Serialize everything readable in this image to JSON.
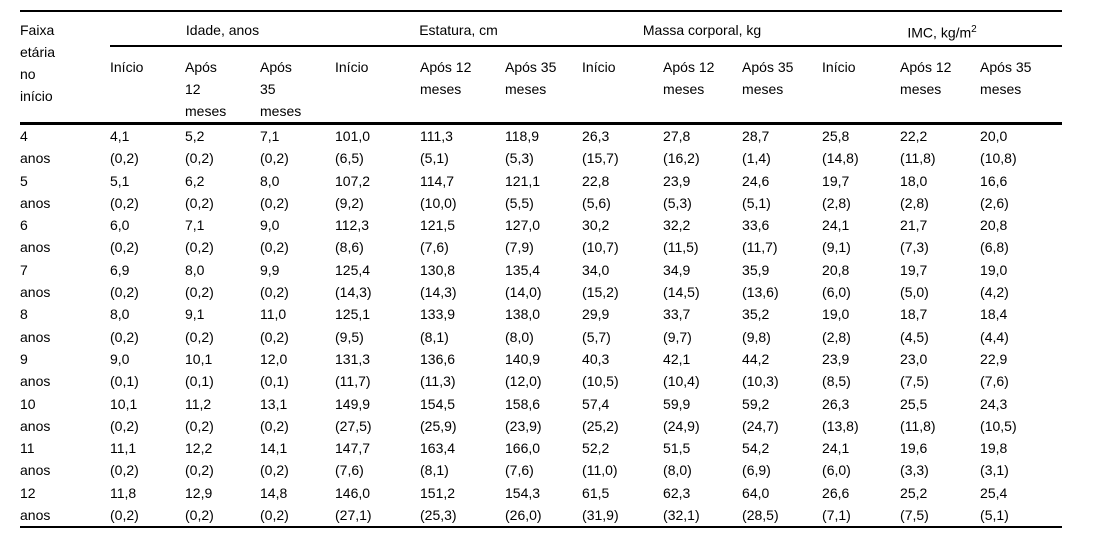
{
  "table": {
    "corner_header": "Faixa etária no início",
    "groups": [
      {
        "label": "Idade, anos",
        "sub": [
          "Início",
          "Após 12 meses",
          "Após 35 meses"
        ]
      },
      {
        "label": "Estatura, cm",
        "sub": [
          "Início",
          "Após 12 meses",
          "Após 35 meses"
        ]
      },
      {
        "label": "Massa corporal, kg",
        "sub": [
          "Início",
          "Após 12 meses",
          "Após 35 meses"
        ]
      },
      {
        "label": "IMC, kg/m",
        "label_sup": "2",
        "sub": [
          "Início",
          "Após 12 meses",
          "Após 35 meses"
        ]
      }
    ],
    "rows": [
      {
        "age": "4",
        "unit": "anos",
        "means": [
          "4,1",
          "5,2",
          "7,1",
          "101,0",
          "111,3",
          "118,9",
          "26,3",
          "27,8",
          "28,7",
          "25,8",
          "22,2",
          "20,0"
        ],
        "sds": [
          "(0,2)",
          "(0,2)",
          "(0,2)",
          "(6,5)",
          "(5,1)",
          "(5,3)",
          "(15,7)",
          "(16,2)",
          "(1,4)",
          "(14,8)",
          "(11,8)",
          "(10,8)"
        ]
      },
      {
        "age": "5",
        "unit": "anos",
        "means": [
          "5,1",
          "6,2",
          "8,0",
          "107,2",
          "114,7",
          "121,1",
          "22,8",
          "23,9",
          "24,6",
          "19,7",
          "18,0",
          "16,6"
        ],
        "sds": [
          "(0,2)",
          "(0,2)",
          "(0,2)",
          "(9,2)",
          "(10,0)",
          "(5,5)",
          "(5,6)",
          "(5,3)",
          "(5,1)",
          "(2,8)",
          "(2,8)",
          "(2,6)"
        ]
      },
      {
        "age": "6",
        "unit": "anos",
        "means": [
          "6,0",
          "7,1",
          "9,0",
          "112,3",
          "121,5",
          "127,0",
          "30,2",
          "32,2",
          "33,6",
          "24,1",
          "21,7",
          "20,8"
        ],
        "sds": [
          "(0,2)",
          "(0,2)",
          "(0,2)",
          "(8,6)",
          "(7,6)",
          "(7,9)",
          "(10,7)",
          "(11,5)",
          "(11,7)",
          "(9,1)",
          "(7,3)",
          "(6,8)"
        ]
      },
      {
        "age": "7",
        "unit": "anos",
        "means": [
          "6,9",
          "8,0",
          "9,9",
          "125,4",
          "130,8",
          "135,4",
          "34,0",
          "34,9",
          "35,9",
          "20,8",
          "19,7",
          "19,0"
        ],
        "sds": [
          "(0,2)",
          "(0,2)",
          "(0,2)",
          "(14,3)",
          "(14,3)",
          "(14,0)",
          "(15,2)",
          "(14,5)",
          "(13,6)",
          "(6,0)",
          "(5,0)",
          "(4,2)"
        ]
      },
      {
        "age": "8",
        "unit": "anos",
        "means": [
          "8,0",
          "9,1",
          "11,0",
          "125,1",
          "133,9",
          "138,0",
          "29,9",
          "33,7",
          "35,2",
          "19,0",
          "18,7",
          "18,4"
        ],
        "sds": [
          "(0,2)",
          "(0,2)",
          "(0,2)",
          "(9,5)",
          "(8,1)",
          "(8,0)",
          "(5,7)",
          "(9,7)",
          "(9,8)",
          "(2,8)",
          "(4,5)",
          "(4,4)"
        ]
      },
      {
        "age": "9",
        "unit": "anos",
        "means": [
          "9,0",
          "10,1",
          "12,0",
          "131,3",
          "136,6",
          "140,9",
          "40,3",
          "42,1",
          "44,2",
          "23,9",
          "23,0",
          "22,9"
        ],
        "sds": [
          "(0,1)",
          "(0,1)",
          "(0,1)",
          "(11,7)",
          "(11,3)",
          "(12,0)",
          "(10,5)",
          "(10,4)",
          "(10,3)",
          "(8,5)",
          "(7,5)",
          "(7,6)"
        ]
      },
      {
        "age": "10",
        "unit": "anos",
        "means": [
          "10,1",
          "11,2",
          "13,1",
          "149,9",
          "154,5",
          "158,6",
          "57,4",
          "59,9",
          "59,2",
          "26,3",
          "25,5",
          "24,3"
        ],
        "sds": [
          "(0,2)",
          "(0,2)",
          "(0,2)",
          "(27,5)",
          "(25,9)",
          "(23,9)",
          "(25,2)",
          "(24,9)",
          "(24,7)",
          "(13,8)",
          "(11,8)",
          "(10,5)"
        ]
      },
      {
        "age": "11",
        "unit": "anos",
        "means": [
          "11,1",
          "12,2",
          "14,1",
          "147,7",
          "163,4",
          "166,0",
          "52,2",
          "51,5",
          "54,2",
          "24,1",
          "19,6",
          "19,8"
        ],
        "sds": [
          "(0,2)",
          "(0,2)",
          "(0,2)",
          "(7,6)",
          "(8,1)",
          "(7,6)",
          "(11,0)",
          "(8,0)",
          "(6,9)",
          "(6,0)",
          "(3,3)",
          "(3,1)"
        ]
      },
      {
        "age": "12",
        "unit": "anos",
        "means": [
          "11,8",
          "12,9",
          "14,8",
          "146,0",
          "151,2",
          "154,3",
          "61,5",
          "62,3",
          "64,0",
          "26,6",
          "25,2",
          "25,4"
        ],
        "sds": [
          "(0,2)",
          "(0,2)",
          "(0,2)",
          "(27,1)",
          "(25,3)",
          "(26,0)",
          "(31,9)",
          "(32,1)",
          "(28,5)",
          "(7,1)",
          "(7,5)",
          "(5,1)"
        ]
      }
    ]
  },
  "colors": {
    "text": "#000000",
    "background": "#ffffff",
    "rule": "#000000"
  }
}
